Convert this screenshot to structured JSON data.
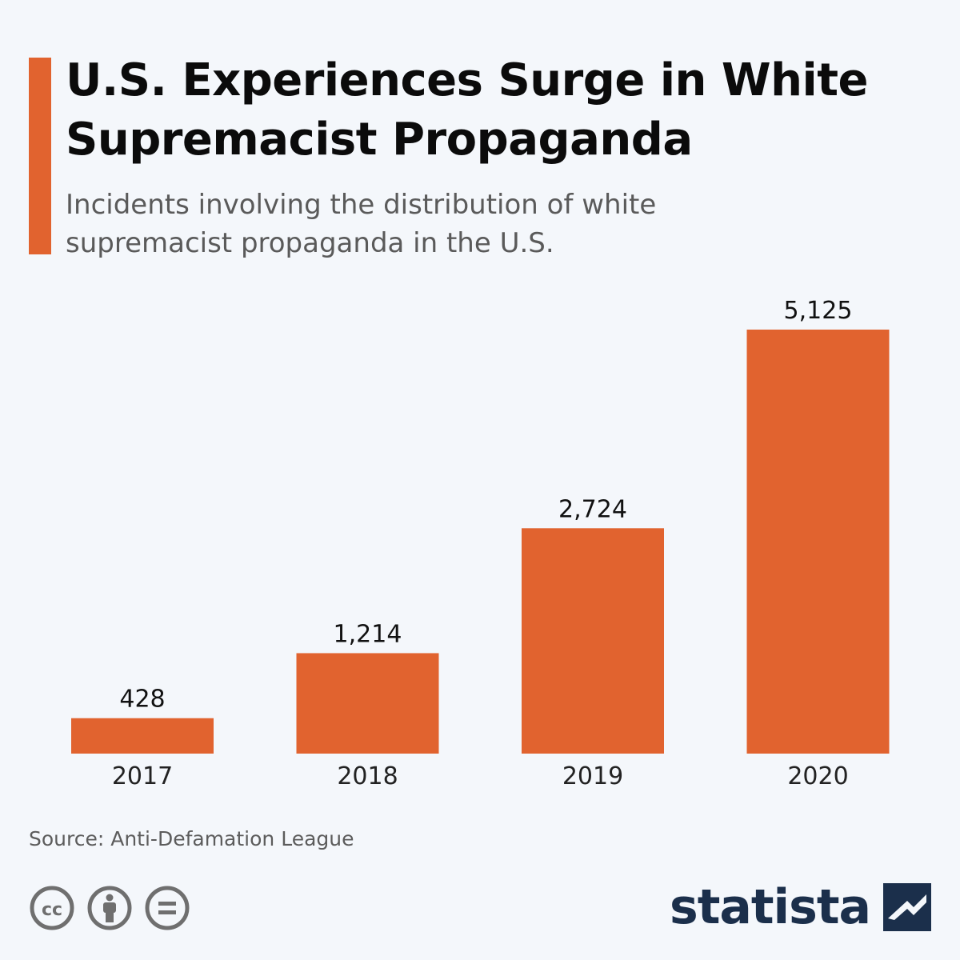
{
  "header": {
    "title": "U.S. Experiences Surge in White Supremacist Propaganda",
    "subtitle": "Incidents involving the distribution of white supremacist propaganda in the U.S."
  },
  "chart_data": {
    "type": "bar",
    "categories": [
      "2017",
      "2018",
      "2019",
      "2020"
    ],
    "values": [
      428,
      1214,
      2724,
      5125
    ],
    "value_labels": [
      "428",
      "1,214",
      "2,724",
      "5,125"
    ],
    "ylim": [
      0,
      5125
    ],
    "grid": false,
    "legend": "none",
    "bar_color": "#e1632f"
  },
  "footer": {
    "source": "Source: Anti-Defamation League",
    "brand": "statista",
    "license_icons": [
      "cc-icon",
      "attribution-icon",
      "no-derivatives-icon"
    ]
  },
  "colors": {
    "accent": "#e1632f",
    "brand": "#1b2f4b",
    "background": "#f4f7fb"
  }
}
